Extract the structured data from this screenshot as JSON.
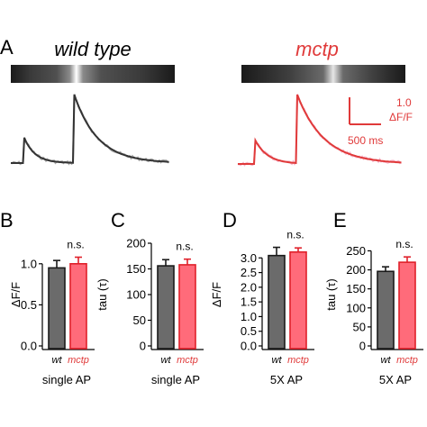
{
  "panel_a": {
    "letter": "A",
    "left_title": "wild type",
    "right_title": "mctp",
    "scale_y_value": "1.0",
    "scale_y_unit": "ΔF/F",
    "scale_x_label": "500 ms",
    "colors": {
      "wt": "#555555",
      "mctp": "#e03a3a",
      "wt_raw": "#aaaaaa",
      "mctp_raw": "#f7b7cc"
    }
  },
  "chart_data": [
    {
      "type": "bar",
      "panel": "B",
      "categories": [
        "wt",
        "mctp"
      ],
      "values": [
        0.95,
        1.0
      ],
      "errors": [
        0.09,
        0.08
      ],
      "ylabel": "ΔF/F",
      "yticks": [
        "0.0",
        "0.5",
        "1.0"
      ],
      "ylim": [
        0,
        1.25
      ],
      "significance": "n.s.",
      "condition": "single AP",
      "colors": [
        "#6b6b6b",
        "#ff6b7a"
      ]
    },
    {
      "type": "bar",
      "panel": "C",
      "categories": [
        "wt",
        "mctp"
      ],
      "values": [
        156,
        158
      ],
      "errors": [
        12,
        11
      ],
      "ylabel": "tau (τ)",
      "yticks": [
        "0",
        "50",
        "100",
        "150",
        "200"
      ],
      "ylim": [
        0,
        200
      ],
      "significance": "n.s.",
      "condition": "single AP",
      "colors": [
        "#6b6b6b",
        "#ff6b7a"
      ]
    },
    {
      "type": "bar",
      "panel": "D",
      "categories": [
        "wt",
        "mctp"
      ],
      "values": [
        3.08,
        3.2
      ],
      "errors": [
        0.28,
        0.14
      ],
      "ylabel": "ΔF/F",
      "yticks": [
        "0.0",
        "0.5",
        "1.0",
        "1.5",
        "2.0",
        "2.5",
        "3.0"
      ],
      "ylim": [
        0,
        3.5
      ],
      "significance": "n.s.",
      "condition": "5X AP",
      "colors": [
        "#6b6b6b",
        "#ff6b7a"
      ]
    },
    {
      "type": "bar",
      "panel": "E",
      "categories": [
        "wt",
        "mctp"
      ],
      "values": [
        196,
        220
      ],
      "errors": [
        12,
        14
      ],
      "ylabel": "tau (τ)",
      "yticks": [
        "0",
        "50",
        "100",
        "150",
        "200",
        "250"
      ],
      "ylim": [
        0,
        270
      ],
      "significance": "n.s.",
      "condition": "5X AP",
      "colors": [
        "#6b6b6b",
        "#ff6b7a"
      ]
    }
  ]
}
